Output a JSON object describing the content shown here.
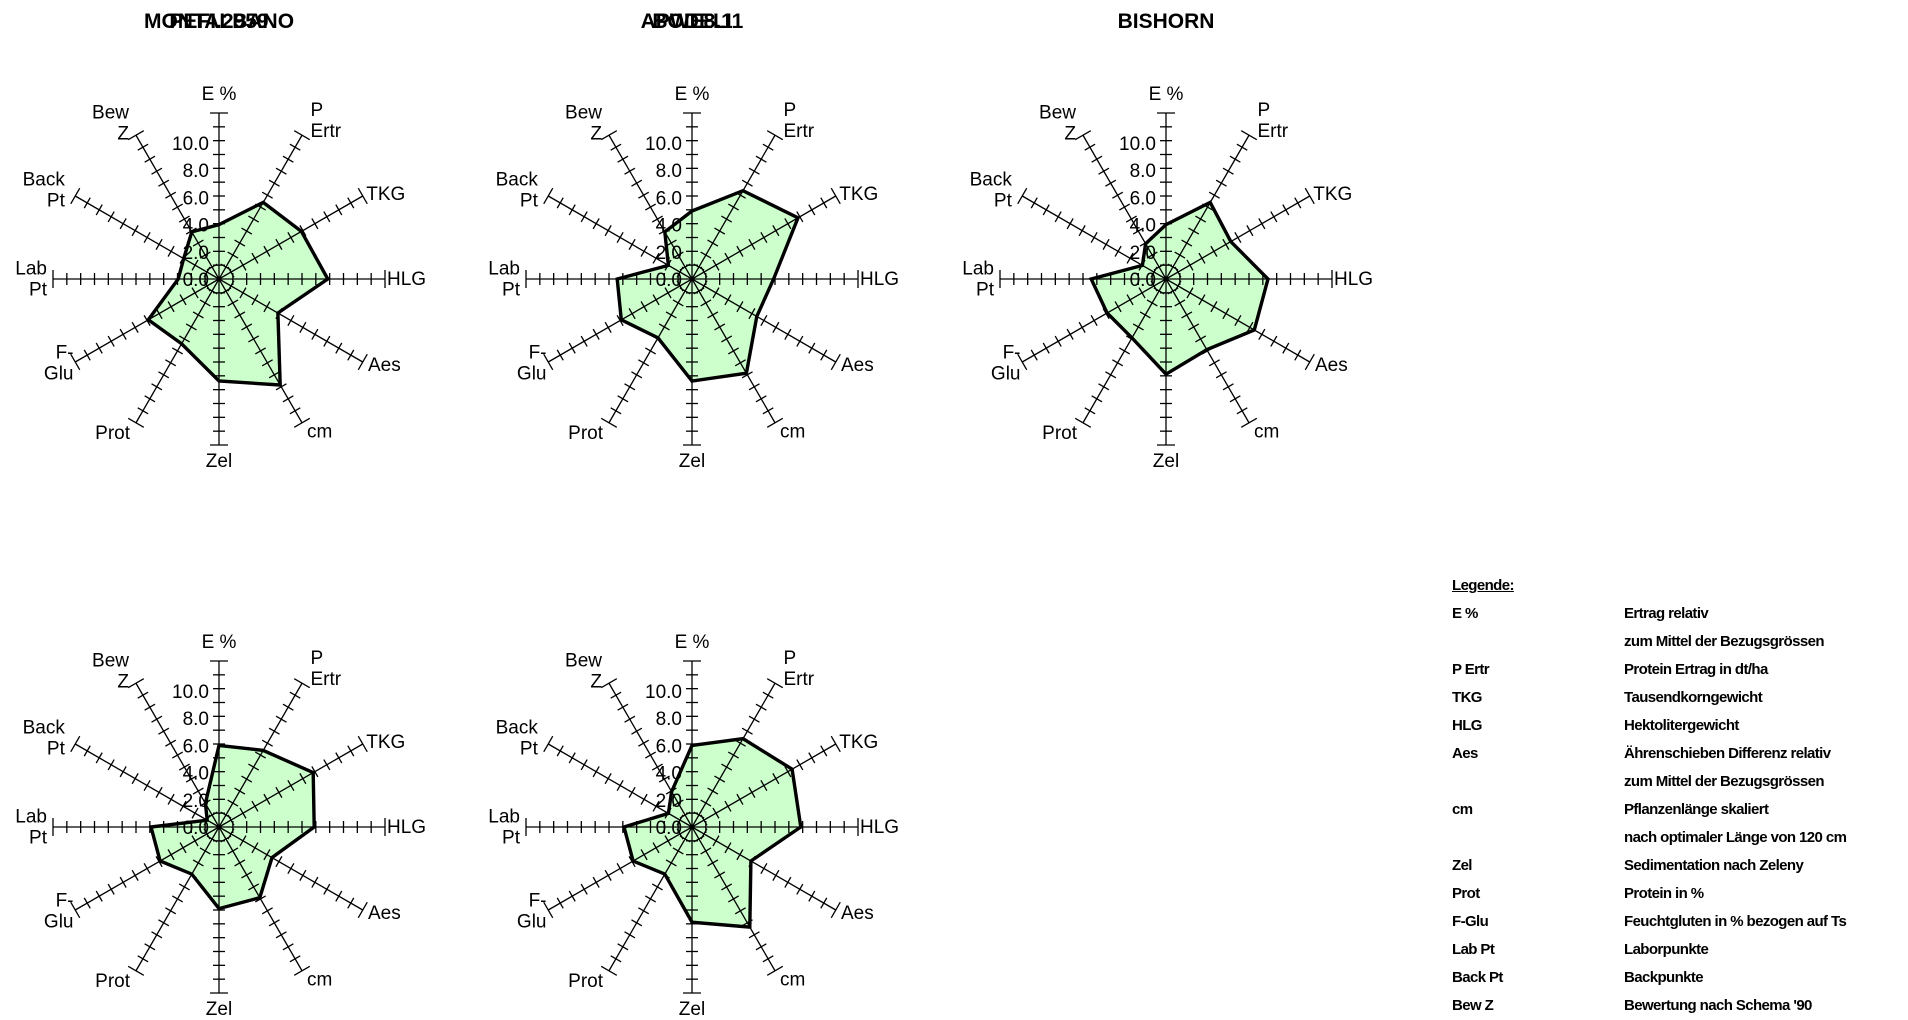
{
  "chart_data": [
    {
      "type": "radar",
      "title": "PEFI.2959",
      "axes": [
        "E %",
        "P\nErtr",
        "TKG",
        "HLG",
        "Aes",
        "cm",
        "Zel",
        "Prot",
        "F-\nGlu",
        "Lab\nPt",
        "Back\nPt",
        "Bew\nZ"
      ],
      "radial_ticks": [
        "10.0",
        "8.0",
        "6.0",
        "4.0",
        "2.0",
        "0.0"
      ],
      "rlim": [
        0,
        10
      ],
      "values": [
        4.0,
        6.5,
        7.0,
        8.0,
        5.0,
        9.0,
        7.5,
        5.5,
        6.0,
        3.0,
        3.0,
        4.0
      ],
      "fill_color": "#ccffcc",
      "line_color": "#000000"
    },
    {
      "type": "radar",
      "title": "BODELI",
      "axes": [
        "E %",
        "P\nErtr",
        "TKG",
        "HLG",
        "Aes",
        "cm",
        "Zel",
        "Prot",
        "F-\nGlu",
        "Lab\nPt",
        "Back\nPt",
        "Bew\nZ"
      ],
      "radial_ticks": [
        "10.0",
        "8.0",
        "6.0",
        "4.0",
        "2.0",
        "0.0"
      ],
      "rlim": [
        0,
        10
      ],
      "values": [
        5.0,
        7.5,
        9.0,
        6.0,
        5.5,
        8.0,
        7.5,
        5.0,
        6.0,
        5.5,
        2.0,
        4.0
      ],
      "fill_color": "#ccffcc",
      "line_color": "#000000"
    },
    {
      "type": "radar",
      "title": "BISHORN",
      "axes": [
        "E %",
        "P\nErtr",
        "TKG",
        "HLG",
        "Aes",
        "cm",
        "Zel",
        "Prot",
        "F-\nGlu",
        "Lab\nPt",
        "Back\nPt",
        "Bew\nZ"
      ],
      "radial_ticks": [
        "10.0",
        "8.0",
        "6.0",
        "4.0",
        "2.0",
        "0.0"
      ],
      "rlim": [
        0,
        10
      ],
      "values": [
        4.0,
        6.5,
        5.5,
        7.5,
        7.5,
        6.0,
        7.0,
        5.0,
        5.0,
        5.5,
        2.0,
        3.0
      ],
      "fill_color": "#ccffcc",
      "line_color": "#000000"
    },
    {
      "type": "radar",
      "title": "MONTALBANO",
      "axes": [
        "E %",
        "P\nErtr",
        "TKG",
        "HLG",
        "Aes",
        "cm",
        "Zel",
        "Prot",
        "F-\nGlu",
        "Lab\nPt",
        "Back\nPt",
        "Bew\nZ"
      ],
      "radial_ticks": [
        "10.0",
        "8.0",
        "6.0",
        "4.0",
        "2.0",
        "0.0"
      ],
      "rlim": [
        0,
        10
      ],
      "values": [
        6.0,
        6.5,
        8.0,
        7.0,
        4.5,
        6.0,
        6.0,
        4.0,
        5.0,
        5.0,
        1.0,
        2.0
      ],
      "fill_color": "#ccffcc",
      "line_color": "#000000"
    },
    {
      "type": "radar",
      "title": "APWE8.11",
      "axes": [
        "E %",
        "P\nErtr",
        "TKG",
        "HLG",
        "Aes",
        "cm",
        "Zel",
        "Prot",
        "F-\nGlu",
        "Lab\nPt",
        "Back\nPt",
        "Bew\nZ"
      ],
      "radial_ticks": [
        "10.0",
        "8.0",
        "6.0",
        "4.0",
        "2.0",
        "0.0"
      ],
      "rlim": [
        0,
        10
      ],
      "values": [
        6.0,
        7.5,
        8.5,
        8.0,
        5.0,
        8.5,
        7.0,
        4.0,
        5.0,
        5.0,
        2.0,
        3.0
      ],
      "fill_color": "#ccffcc",
      "line_color": "#000000"
    }
  ],
  "legend": {
    "title": "Legende:",
    "rows": [
      {
        "key": "E %",
        "desc": "Ertrag relativ"
      },
      {
        "key": "",
        "desc": "zum Mittel der Bezugsgrössen"
      },
      {
        "key": "P Ertr",
        "desc": "Protein Ertrag in dt/ha"
      },
      {
        "key": "TKG",
        "desc": "Tausendkorngewicht"
      },
      {
        "key": "HLG",
        "desc": "Hektolitergewicht"
      },
      {
        "key": "Aes",
        "desc": "Ährenschieben Differenz relativ"
      },
      {
        "key": "",
        "desc": "zum Mittel der Bezugsgrössen"
      },
      {
        "key": "cm",
        "desc": "Pflanzenlänge skaliert"
      },
      {
        "key": "",
        "desc": "nach optimaler Länge von 120 cm"
      },
      {
        "key": "Zel",
        "desc": "Sedimentation nach Zeleny"
      },
      {
        "key": "Prot",
        "desc": "Protein in %"
      },
      {
        "key": "F-Glu",
        "desc": "Feuchtgluten in % bezogen auf Ts"
      },
      {
        "key": "Lab Pt",
        "desc": "Laborpunkte"
      },
      {
        "key": "Back Pt",
        "desc": "Backpunkte"
      },
      {
        "key": "Bew Z",
        "desc": "Bewertung nach Schema '90"
      }
    ]
  }
}
